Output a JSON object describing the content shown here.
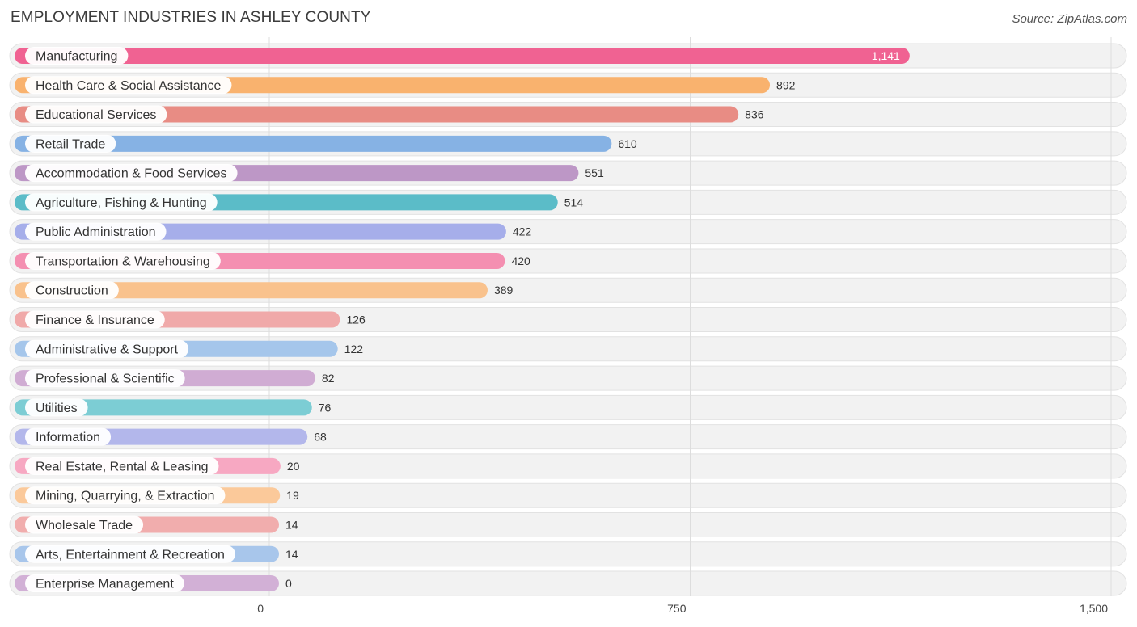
{
  "header": {
    "title": "EMPLOYMENT INDUSTRIES IN ASHLEY COUNTY",
    "source": "Source: ZipAtlas.com"
  },
  "chart_data": {
    "type": "bar",
    "orientation": "horizontal",
    "title": "EMPLOYMENT INDUSTRIES IN ASHLEY COUNTY",
    "xlabel": "",
    "ylabel": "",
    "xlim": [
      0,
      1500
    ],
    "ticks": [
      {
        "value": 0,
        "label": "0"
      },
      {
        "value": 750,
        "label": "750"
      },
      {
        "value": 1500,
        "label": "1,500"
      }
    ],
    "grid": true,
    "categories": [
      "Manufacturing",
      "Health Care & Social Assistance",
      "Educational Services",
      "Retail Trade",
      "Accommodation & Food Services",
      "Agriculture, Fishing & Hunting",
      "Public Administration",
      "Transportation & Warehousing",
      "Construction",
      "Finance & Insurance",
      "Administrative & Support",
      "Professional & Scientific",
      "Utilities",
      "Information",
      "Real Estate, Rental & Leasing",
      "Mining, Quarrying, & Extraction",
      "Wholesale Trade",
      "Arts, Entertainment & Recreation",
      "Enterprise Management"
    ],
    "values": [
      1141,
      892,
      836,
      610,
      551,
      514,
      422,
      420,
      389,
      126,
      122,
      82,
      76,
      68,
      20,
      19,
      14,
      14,
      0
    ],
    "value_labels": [
      "1,141",
      "892",
      "836",
      "610",
      "551",
      "514",
      "422",
      "420",
      "389",
      "126",
      "122",
      "82",
      "76",
      "68",
      "20",
      "19",
      "14",
      "14",
      "0"
    ],
    "colors": [
      "#f06292",
      "#f9b26e",
      "#e88c84",
      "#86b2e4",
      "#bd97c6",
      "#5bbcc8",
      "#a6aeea",
      "#f48fb1",
      "#f9c28d",
      "#f0a9a9",
      "#a5c6eb",
      "#d0acd3",
      "#7ccdd4",
      "#b3b7eb",
      "#f7a8c2",
      "#fbc99a",
      "#f1adad",
      "#a8c6eb",
      "#d2b0d6"
    ]
  }
}
